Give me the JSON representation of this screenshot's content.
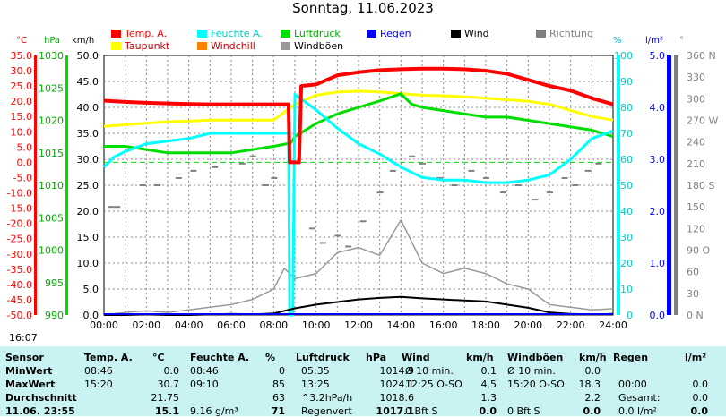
{
  "title": "Sonntag, 11.06.2023",
  "colors": {
    "temp": "#ff0000",
    "humidity": "#00ffff",
    "pressure": "#00dd00",
    "rain": "#0000ff",
    "wind": "#000000",
    "direction": "#808080",
    "dewpoint": "#ffff00",
    "windchill": "#ff8000",
    "gust": "#999999"
  },
  "legend": [
    {
      "label": "Temp. A.",
      "color": "#ff0000",
      "text_color": "#ff0000"
    },
    {
      "label": "Feuchte A.",
      "color": "#00ffff",
      "text_color": "#00cccc"
    },
    {
      "label": "Luftdruck",
      "color": "#00dd00",
      "text_color": "#00aa00"
    },
    {
      "label": "Regen",
      "color": "#0000ff",
      "text_color": "#0000ff"
    },
    {
      "label": "Wind",
      "color": "#000000",
      "text_color": "#000000"
    },
    {
      "label": "Richtung",
      "color": "#808080",
      "text_color": "#808080"
    },
    {
      "label": "Taupunkt",
      "color": "#ffff00",
      "text_color": "#cc0000"
    },
    {
      "label": "Windchill",
      "color": "#ff8000",
      "text_color": "#cc0000"
    },
    {
      "label": "Windböen",
      "color": "#999999",
      "text_color": "#000000"
    }
  ],
  "axis_units": {
    "temp": "°C",
    "pressure": "hPa",
    "wind": "km/h",
    "humidity": "%",
    "rain": "l/m²",
    "direction": "°"
  },
  "chart_data": {
    "type": "line",
    "x_ticks": [
      "00:00",
      "02:00",
      "04:00",
      "06:00",
      "08:00",
      "10:00",
      "12:00",
      "14:00",
      "16:00",
      "18:00",
      "20:00",
      "22:00",
      "24:00"
    ],
    "x_range_hours": [
      0,
      24
    ],
    "temp_ticks": [
      "35.0",
      "30.0",
      "25.0",
      "20.0",
      "15.0",
      "10.0",
      "5.0",
      "0.0",
      "-5.0",
      "-10.0",
      "-15.0",
      "-20.0",
      "-25.0",
      "-30.0",
      "-35.0",
      "-40.0",
      "-45.0",
      "-50.0"
    ],
    "temp_range": [
      -50,
      35
    ],
    "pressure_ticks": [
      "1030",
      "1025",
      "1020",
      "1015",
      "1010",
      "1005",
      "1000",
      "995",
      "990"
    ],
    "pressure_range": [
      990,
      1030
    ],
    "wind_ticks": [
      "50.0",
      "45.0",
      "40.0",
      "35.0",
      "30.0",
      "25.0",
      "20.0",
      "15.0",
      "10.0",
      "5.0",
      "0.0"
    ],
    "wind_range": [
      0,
      50
    ],
    "humidity_ticks": [
      "100",
      "90",
      "80",
      "70",
      "60",
      "50",
      "40",
      "30",
      "20",
      "10",
      "0"
    ],
    "humidity_range": [
      0,
      100
    ],
    "rain_ticks": [
      "5.0",
      "4.0",
      "3.0",
      "2.0",
      "1.0",
      "0.0"
    ],
    "rain_range": [
      0,
      5
    ],
    "direction_ticks": [
      "360 N",
      "330",
      "300",
      "270 W",
      "240",
      "210",
      "180 S",
      "150",
      "120",
      "90 O",
      "60",
      "30",
      "0 N"
    ],
    "direction_range": [
      0,
      360
    ],
    "series": [
      {
        "name": "Temp. A.",
        "axis": "temp",
        "x": [
          0,
          1,
          2,
          3,
          4,
          5,
          6,
          7,
          8,
          8.7,
          8.75,
          9.2,
          9.3,
          10,
          11,
          12,
          13,
          14,
          15,
          16,
          17,
          18,
          19,
          20,
          21,
          22,
          23,
          24
        ],
        "y": [
          20.2,
          19.8,
          19.5,
          19.3,
          19.1,
          19.0,
          19.0,
          19.0,
          19.0,
          19.0,
          0.0,
          0.0,
          25.0,
          25.5,
          28.5,
          29.5,
          30.2,
          30.5,
          30.7,
          30.7,
          30.5,
          30.0,
          29.0,
          27.0,
          25.0,
          23.5,
          21.0,
          19.0
        ]
      },
      {
        "name": "Feuchte A.",
        "axis": "humidity",
        "x": [
          0,
          0.5,
          1,
          2,
          3,
          4,
          5,
          6,
          7,
          8,
          8.7,
          8.75,
          8.9,
          9.0,
          9.5,
          10,
          11,
          12,
          13,
          14,
          15,
          16,
          17,
          18,
          19,
          20,
          21,
          22,
          23,
          24
        ],
        "y": [
          57,
          61,
          63,
          66,
          67,
          68,
          70,
          70,
          70,
          70,
          70,
          0,
          0,
          85,
          82,
          79,
          72,
          66,
          62,
          57,
          53,
          52,
          52,
          51,
          51,
          52,
          54,
          60,
          68,
          71
        ]
      },
      {
        "name": "Luftdruck",
        "axis": "pressure",
        "x": [
          0,
          1,
          2,
          3,
          4,
          5,
          6,
          7,
          8,
          8.8,
          9,
          10,
          11,
          12,
          13,
          14,
          14.5,
          15,
          16,
          17,
          18,
          19,
          20,
          21,
          22,
          23,
          23.5,
          24
        ],
        "y": [
          1016.0,
          1016.0,
          1015.5,
          1015.0,
          1015.0,
          1015.0,
          1015.0,
          1015.5,
          1016.0,
          1016.5,
          1017.5,
          1019.5,
          1021.0,
          1022.0,
          1023.0,
          1024.1,
          1022.5,
          1022.0,
          1021.5,
          1021.0,
          1020.5,
          1020.5,
          1020.0,
          1019.5,
          1019.0,
          1018.5,
          1018.0,
          1017.5
        ]
      },
      {
        "name": "Taupunkt",
        "axis": "temp",
        "x": [
          0,
          1,
          2,
          3,
          4,
          5,
          6,
          7,
          8,
          9,
          10,
          11,
          12,
          13,
          14,
          15,
          16,
          17,
          18,
          19,
          20,
          21,
          22,
          23,
          24
        ],
        "y": [
          11.8,
          12.3,
          12.8,
          13.3,
          13.5,
          13.8,
          13.8,
          13.8,
          13.8,
          19.0,
          22.0,
          23.0,
          23.3,
          23.0,
          22.5,
          22.0,
          21.8,
          21.5,
          21.0,
          20.5,
          20.0,
          19.0,
          17.0,
          15.0,
          13.8
        ]
      },
      {
        "name": "Wind",
        "axis": "wind",
        "x": [
          0,
          1,
          2,
          3,
          4,
          5,
          6,
          7,
          8,
          9,
          10,
          11,
          12,
          13,
          14,
          15,
          16,
          17,
          18,
          19,
          20,
          21,
          22,
          23,
          24
        ],
        "y": [
          0.0,
          0.0,
          0.1,
          0.0,
          0.0,
          0.1,
          0.2,
          0.1,
          0.3,
          1.3,
          2.0,
          2.5,
          3.0,
          3.3,
          3.5,
          3.2,
          3.0,
          2.8,
          2.6,
          2.0,
          1.4,
          0.5,
          0.2,
          0.1,
          0.2
        ]
      },
      {
        "name": "Windböen",
        "axis": "wind",
        "x": [
          0,
          1,
          2,
          3,
          4,
          5,
          6,
          7,
          8,
          8.5,
          9,
          10,
          11,
          12,
          13,
          14,
          15,
          16,
          17,
          18,
          19,
          20,
          21,
          22,
          23,
          24
        ],
        "y": [
          0.0,
          0.5,
          0.8,
          0.5,
          1.0,
          1.5,
          2.0,
          3.0,
          5.0,
          9.0,
          7.0,
          8.0,
          12.0,
          13.0,
          11.5,
          18.3,
          10.0,
          8.0,
          9.0,
          8.0,
          6.0,
          5.0,
          2.0,
          1.5,
          1.0,
          1.2
        ]
      },
      {
        "name": "Richtung",
        "axis": "direction",
        "style": "dots",
        "x": [
          0.3,
          0.6,
          1.8,
          2.5,
          3.5,
          4.2,
          5.2,
          6.5,
          7.0,
          7.6,
          8.0,
          9.8,
          10.3,
          11.0,
          11.5,
          12.2,
          13.0,
          13.6,
          14.5,
          15.0,
          15.8,
          16.5,
          17.3,
          18.0,
          18.8,
          19.5,
          20.3,
          21.0,
          21.7,
          22.2,
          22.8,
          23.3
        ],
        "y": [
          150,
          150,
          180,
          180,
          190,
          200,
          205,
          210,
          220,
          180,
          190,
          120,
          100,
          110,
          95,
          130,
          170,
          200,
          220,
          210,
          190,
          180,
          200,
          190,
          170,
          180,
          160,
          170,
          190,
          180,
          200,
          210
        ]
      }
    ],
    "reference_lines": [
      {
        "axis": "temp",
        "value": 0,
        "style": "dashed",
        "color": "#00dd00"
      }
    ]
  },
  "timestamp_left": "16:07",
  "stats": {
    "headers": [
      "Sensor",
      "Temp. A.",
      "°C",
      "Feuchte A.",
      "%",
      "Luftdruck",
      "hPa",
      "Wind",
      "km/h",
      "Windböen",
      "km/h",
      "Regen",
      "l/m²"
    ],
    "rows": [
      {
        "label": "MinWert",
        "cells": [
          "08:46",
          "0.0",
          "08:46",
          "0",
          "05:35",
          "1014.9",
          "Ø 10 min.",
          "0.1",
          "Ø 10 min.",
          "0.0",
          "",
          ""
        ]
      },
      {
        "label": "MaxWert",
        "cells": [
          "15:20",
          "30.7",
          "09:10",
          "85",
          "13:25",
          "1024.1",
          "12:25   O-SO",
          "4.5",
          "15:20   O-SO",
          "18.3",
          "00:00",
          "0.0"
        ]
      },
      {
        "label": "Durchschnitt",
        "cells": [
          "",
          "21.75",
          "",
          "63",
          "^3.2hPa/h",
          "1018.6",
          "",
          "1.3",
          "",
          "2.2",
          "Gesamt:",
          "0.0"
        ]
      },
      {
        "label": "11.06. 23:55",
        "cells": [
          "",
          "15.1",
          "9.16 g/m³",
          "71",
          "Regenvert",
          "1017.1",
          "0 Bft S",
          "0.0",
          "0 Bft S",
          "0.0",
          "0.0 l/m²",
          "0.0"
        ]
      }
    ]
  }
}
